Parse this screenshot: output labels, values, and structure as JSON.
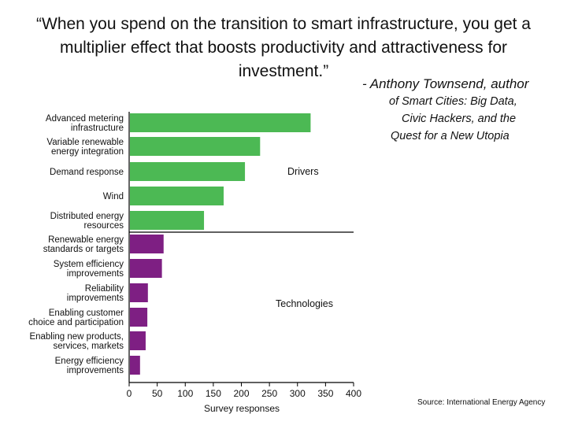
{
  "quote": "“When you spend on the transition to smart infrastructure, you get a multiplier effect that boosts productivity and attractiveness for investment.”",
  "attribution": {
    "prefix": "- ",
    "author": "Anthony Townsend,",
    "line1_rest": " author",
    "line2": "of Smart Cities: Big Data,",
    "line3": "Civic Hackers, and the",
    "line4": "Quest for a New Utopia"
  },
  "source": "Source: International Energy Agency",
  "colors": {
    "drivers": "#4cb954",
    "technologies": "#7e1f83",
    "axis": "#000000"
  },
  "chart_data": {
    "type": "bar",
    "orientation": "horizontal",
    "xlabel": "Survey responses",
    "xlim": [
      0,
      400
    ],
    "xticks": [
      0,
      50,
      100,
      150,
      200,
      250,
      300,
      350,
      400
    ],
    "categories": [
      [
        "Advanced metering",
        "infrastructure"
      ],
      [
        "Variable renewable",
        "energy integration"
      ],
      [
        "Demand response"
      ],
      [
        "Wind"
      ],
      [
        "Distributed energy",
        "resources"
      ],
      [
        "Renewable energy",
        "standards or targets"
      ],
      [
        "System efficiency",
        "improvements"
      ],
      [
        "Reliability",
        "improvements"
      ],
      [
        "Enabling customer",
        "choice and participation"
      ],
      [
        "Enabling new products,",
        "services, markets"
      ],
      [
        "Energy efficiency",
        "improvements"
      ]
    ],
    "values": [
      322,
      232,
      205,
      167,
      132,
      60,
      57,
      32,
      31,
      28,
      18
    ],
    "groups": [
      {
        "name": "Drivers",
        "start": 0,
        "end": 4
      },
      {
        "name": "Technologies",
        "start": 5,
        "end": 10
      }
    ],
    "grid": false
  }
}
